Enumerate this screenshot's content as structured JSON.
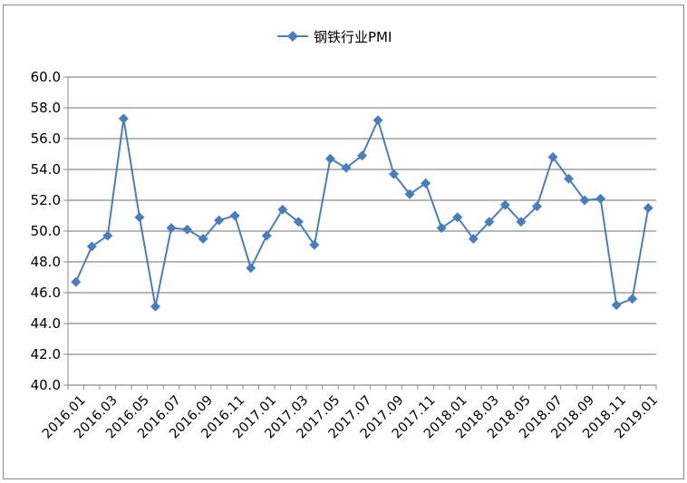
{
  "chart_data": {
    "type": "line",
    "title": "",
    "xlabel": "",
    "ylabel": "",
    "ylim": [
      40,
      60
    ],
    "ytick_step": 2,
    "yticks": [
      "40.0",
      "42.0",
      "44.0",
      "46.0",
      "48.0",
      "50.0",
      "52.0",
      "54.0",
      "56.0",
      "58.0",
      "60.0"
    ],
    "grid": true,
    "legend_position": "top-center",
    "line_color": "#4a7ebb",
    "marker": "diamond",
    "x": [
      "2016.01",
      "2016.02",
      "2016.03",
      "2016.04",
      "2016.05",
      "2016.06",
      "2016.07",
      "2016.08",
      "2016.09",
      "2016.10",
      "2016.11",
      "2016.12",
      "2017.01",
      "2017.02",
      "2017.03",
      "2017.04",
      "2017.05",
      "2017.06",
      "2017.07",
      "2017.08",
      "2017.09",
      "2017.10",
      "2017.11",
      "2017.12",
      "2018.01",
      "2018.02",
      "2018.03",
      "2018.04",
      "2018.05",
      "2018.06",
      "2018.07",
      "2018.08",
      "2018.09",
      "2018.10",
      "2018.11",
      "2018.12",
      "2019.01"
    ],
    "x_tick_labels": [
      "2016.01",
      "2016.03",
      "2016.05",
      "2016.07",
      "2016.09",
      "2016.11",
      "2017.01",
      "2017.03",
      "2017.05",
      "2017.07",
      "2017.09",
      "2017.11",
      "2018.01",
      "2018.03",
      "2018.05",
      "2018.07",
      "2018.09",
      "2018.11",
      "2019.01"
    ],
    "series": [
      {
        "name": "钢铁行业PMI",
        "values": [
          46.7,
          49.0,
          49.7,
          57.3,
          50.9,
          45.1,
          50.2,
          50.1,
          49.5,
          50.7,
          51.0,
          47.6,
          49.7,
          51.4,
          50.6,
          49.1,
          54.7,
          54.1,
          54.9,
          57.2,
          53.7,
          52.4,
          53.1,
          50.2,
          50.9,
          49.5,
          50.6,
          51.7,
          50.6,
          51.6,
          54.8,
          53.4,
          52.0,
          52.1,
          45.2,
          45.6,
          51.5
        ]
      }
    ]
  }
}
